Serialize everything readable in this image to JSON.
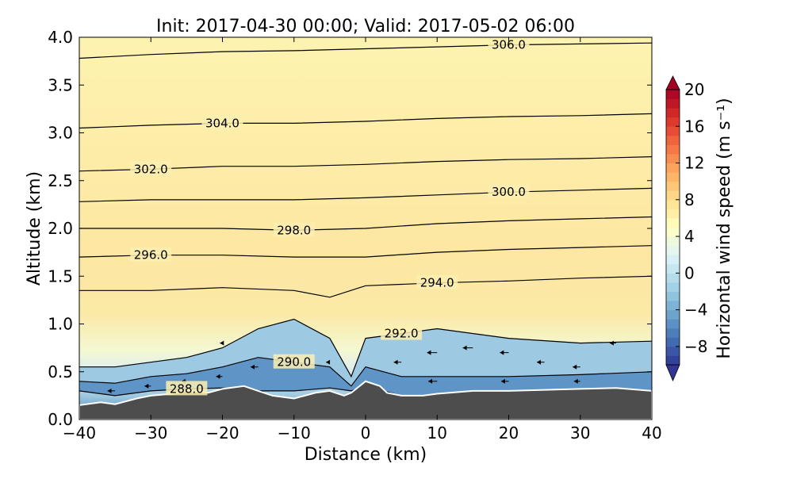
{
  "chart_data": {
    "type": "heatmap",
    "title": "Init: 2017-04-30 00:00; Valid: 2017-05-02 06:00",
    "xlabel": "Distance (km)",
    "ylabel": "Altitude (km)",
    "xlim": [
      -40,
      40
    ],
    "ylim": [
      0.0,
      4.0
    ],
    "x_ticks": [
      "−40",
      "−30",
      "−20",
      "−10",
      "0",
      "10",
      "20",
      "30",
      "40"
    ],
    "y_ticks": [
      "0.0",
      "0.5",
      "1.0",
      "1.5",
      "2.0",
      "2.5",
      "3.0",
      "3.5",
      "4.0"
    ],
    "grid": false,
    "colorbar": {
      "label": "Horizontal wind speed (m s⁻¹)",
      "range": [
        -10,
        20
      ],
      "step": 1,
      "extend": "both",
      "ticks": [
        "−8",
        "−4",
        "0",
        "4",
        "8",
        "12",
        "16",
        "20"
      ],
      "colormap": "RdYlBu_r"
    },
    "series": [
      {
        "kind": "theta_contour",
        "label": "288.0",
        "x": [
          -40,
          -35,
          -30,
          -25,
          -20,
          -15,
          -10,
          -5,
          -2,
          0,
          5,
          10,
          20,
          30,
          40
        ],
        "y": [
          0.3,
          0.25,
          0.3,
          0.32,
          0.33,
          0.3,
          0.3,
          0.33,
          0.3,
          0.35,
          0.25,
          0.25,
          0.27,
          0.28,
          0.3
        ]
      },
      {
        "kind": "theta_contour",
        "label": "290.0",
        "x": [
          -40,
          -35,
          -30,
          -25,
          -20,
          -15,
          -10,
          -5,
          -2,
          0,
          5,
          10,
          20,
          30,
          40
        ],
        "y": [
          0.4,
          0.38,
          0.45,
          0.48,
          0.55,
          0.65,
          0.6,
          0.55,
          0.35,
          0.55,
          0.45,
          0.45,
          0.45,
          0.47,
          0.5
        ]
      },
      {
        "kind": "theta_contour",
        "label": "292.0",
        "x": [
          -40,
          -35,
          -30,
          -25,
          -20,
          -15,
          -10,
          -5,
          -2,
          0,
          5,
          10,
          20,
          30,
          40
        ],
        "y": [
          0.55,
          0.55,
          0.6,
          0.65,
          0.75,
          0.95,
          1.05,
          0.85,
          0.45,
          0.85,
          0.9,
          0.95,
          0.85,
          0.8,
          0.82
        ]
      },
      {
        "kind": "theta_contour",
        "label": "294.0",
        "x": [
          -40,
          -30,
          -20,
          -10,
          -5,
          0,
          10,
          20,
          30,
          40
        ],
        "y": [
          1.35,
          1.35,
          1.38,
          1.35,
          1.28,
          1.4,
          1.43,
          1.45,
          1.48,
          1.5
        ]
      },
      {
        "kind": "theta_contour",
        "label": "296.0",
        "x": [
          -40,
          -30,
          -20,
          -10,
          0,
          10,
          20,
          30,
          40
        ],
        "y": [
          1.7,
          1.72,
          1.72,
          1.7,
          1.7,
          1.75,
          1.78,
          1.8,
          1.82
        ]
      },
      {
        "kind": "theta_contour",
        "label": "298.0",
        "x": [
          -40,
          -30,
          -20,
          -10,
          0,
          10,
          20,
          30,
          40
        ],
        "y": [
          2.0,
          2.0,
          2.0,
          1.98,
          2.0,
          2.05,
          2.08,
          2.1,
          2.12
        ]
      },
      {
        "kind": "theta_contour",
        "label": "300.0",
        "x": [
          -40,
          -30,
          -20,
          -10,
          0,
          10,
          20,
          30,
          40
        ],
        "y": [
          2.28,
          2.3,
          2.3,
          2.3,
          2.32,
          2.35,
          2.38,
          2.4,
          2.42
        ]
      },
      {
        "kind": "theta_contour",
        "label": "302.0",
        "x": [
          -40,
          -30,
          -20,
          -10,
          0,
          10,
          20,
          30,
          40
        ],
        "y": [
          2.6,
          2.62,
          2.65,
          2.65,
          2.67,
          2.7,
          2.72,
          2.73,
          2.75
        ]
      },
      {
        "kind": "theta_contour",
        "label": "304.0",
        "x": [
          -40,
          -30,
          -20,
          -10,
          0,
          10,
          20,
          30,
          40
        ],
        "y": [
          3.05,
          3.08,
          3.1,
          3.1,
          3.12,
          3.15,
          3.17,
          3.18,
          3.2
        ]
      },
      {
        "kind": "theta_contour",
        "label": "306.0",
        "x": [
          -40,
          -30,
          -20,
          -10,
          0,
          10,
          20,
          30,
          40
        ],
        "y": [
          3.78,
          3.82,
          3.85,
          3.86,
          3.88,
          3.9,
          3.92,
          3.93,
          3.94
        ]
      }
    ],
    "terrain": {
      "x": [
        -40,
        -37,
        -35,
        -32,
        -30,
        -27,
        -25,
        -22,
        -20,
        -17,
        -15,
        -13,
        -10,
        -7,
        -5,
        -3,
        -2,
        0,
        2,
        3,
        5,
        8,
        10,
        15,
        20,
        25,
        30,
        35,
        40
      ],
      "y": [
        0.15,
        0.18,
        0.16,
        0.22,
        0.25,
        0.27,
        0.3,
        0.28,
        0.32,
        0.35,
        0.3,
        0.25,
        0.22,
        0.28,
        0.3,
        0.25,
        0.28,
        0.4,
        0.35,
        0.28,
        0.25,
        0.25,
        0.27,
        0.3,
        0.3,
        0.31,
        0.32,
        0.33,
        0.3
      ]
    },
    "wind_field": [
      {
        "x": -35,
        "y": 0.3,
        "u": -6
      },
      {
        "x": -30,
        "y": 0.35,
        "u": -5
      },
      {
        "x": -25,
        "y": 0.4,
        "u": -4
      },
      {
        "x": -20,
        "y": 0.45,
        "u": -5
      },
      {
        "x": -15,
        "y": 0.55,
        "u": -6
      },
      {
        "x": -10,
        "y": 0.65,
        "u": -7
      },
      {
        "x": -5,
        "y": 0.6,
        "u": -3
      },
      {
        "x": 5,
        "y": 0.6,
        "u": -6
      },
      {
        "x": 10,
        "y": 0.7,
        "u": -8
      },
      {
        "x": 15,
        "y": 0.75,
        "u": -8
      },
      {
        "x": 20,
        "y": 0.7,
        "u": -7
      },
      {
        "x": 25,
        "y": 0.6,
        "u": -6
      },
      {
        "x": 30,
        "y": 0.55,
        "u": -6
      },
      {
        "x": 35,
        "y": 0.8,
        "u": -5
      },
      {
        "x": 10,
        "y": 0.4,
        "u": -7
      },
      {
        "x": 20,
        "y": 0.4,
        "u": -6
      },
      {
        "x": 30,
        "y": 0.4,
        "u": -5
      },
      {
        "x": -20,
        "y": 0.8,
        "u": -2
      }
    ]
  }
}
